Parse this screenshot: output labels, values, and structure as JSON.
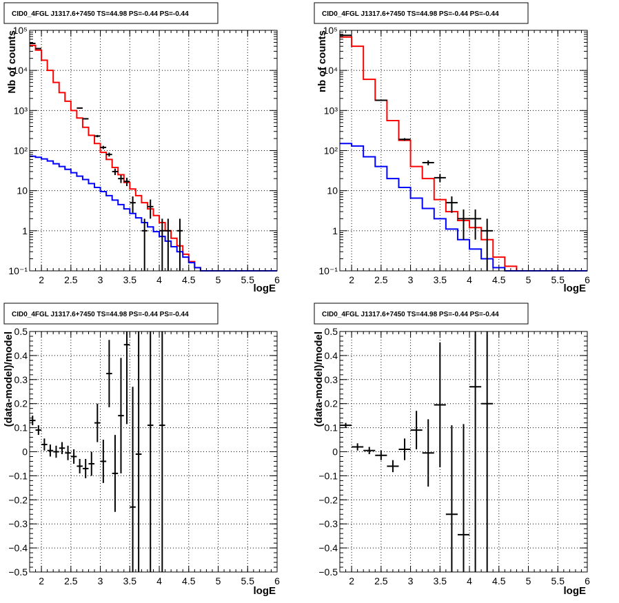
{
  "chart_data": [
    {
      "id": "p1",
      "type": "line",
      "title": "CID0_4FGL J1317.6+7450 TS=44.98 PS=-0.44 PS=-0.44",
      "xlabel": "logE",
      "ylabel": "Nb of counts",
      "xlim": [
        1.8,
        6.0
      ],
      "ylim": [
        0.1,
        100000
      ],
      "yscale": "log",
      "grid": true,
      "xticks": [
        2,
        2.5,
        3,
        3.5,
        4,
        4.5,
        5,
        5.5,
        6
      ],
      "xtick_labels": [
        "2",
        "2.5",
        "3",
        "3.5",
        "4",
        "4.5",
        "5",
        "5.5",
        "6"
      ],
      "yticks": [
        0.1,
        1,
        10,
        100,
        1000,
        10000,
        100000
      ],
      "ytick_labels": [
        "10⁻¹",
        "1",
        "10",
        "10²",
        "10³",
        "10⁴",
        "10⁵"
      ],
      "hist_edges": [
        1.8,
        1.9,
        2.0,
        2.1,
        2.2,
        2.3,
        2.4,
        2.5,
        2.6,
        2.7,
        2.8,
        2.9,
        3.0,
        3.1,
        3.2,
        3.3,
        3.4,
        3.5,
        3.6,
        3.7,
        3.8,
        3.9,
        4.0,
        4.1,
        4.2,
        4.3,
        4.4,
        4.5,
        4.6,
        4.7,
        4.8,
        4.9,
        5.0,
        5.1,
        5.2,
        5.3,
        5.4,
        5.5,
        5.6,
        5.7,
        5.8,
        5.9,
        6.0
      ],
      "series": [
        {
          "color": "#ff0000",
          "values": [
            42000,
            32000,
            18000,
            10000,
            5000,
            2800,
            1700,
            1000,
            650,
            380,
            240,
            150,
            90,
            60,
            38,
            25,
            16,
            11,
            7.5,
            5,
            3.5,
            2.4,
            1.6,
            1.0,
            0.65,
            0.42,
            0.26,
            0.17,
            0.12,
            0.1,
            0.1,
            0.1,
            0.1,
            0.1,
            0.1,
            0.1,
            0.1,
            0.1,
            0.1,
            0.1,
            0.1,
            0.1
          ]
        },
        {
          "color": "#0000ff",
          "values": [
            72,
            68,
            62,
            55,
            47,
            40,
            34,
            28,
            23,
            19,
            15,
            12,
            9.5,
            7.5,
            5.8,
            4.5,
            3.5,
            2.7,
            2.1,
            1.6,
            1.25,
            0.95,
            0.72,
            0.55,
            0.4,
            0.3,
            0.22,
            0.16,
            0.12,
            0.1,
            0.1,
            0.1,
            0.1,
            0.1,
            0.1,
            0.1,
            0.1,
            0.1,
            0.1,
            0.1,
            0.1,
            0.1
          ]
        }
      ],
      "points": [
        {
          "x": 1.85,
          "y": 47000,
          "ey": 220
        },
        {
          "x": 1.95,
          "y": 35000,
          "ey": 190
        },
        {
          "x": 2.65,
          "y": 1150,
          "ey": 34
        },
        {
          "x": 2.75,
          "y": 620,
          "ey": 25
        },
        {
          "x": 2.95,
          "y": 230,
          "ey": 15
        },
        {
          "x": 3.05,
          "y": 120,
          "ey": 11
        },
        {
          "x": 3.15,
          "y": 80,
          "ey": 9
        },
        {
          "x": 3.25,
          "y": 30,
          "ey": 5.5
        },
        {
          "x": 3.35,
          "y": 20,
          "ey": 4.5
        },
        {
          "x": 3.45,
          "y": 17,
          "ey": 4
        },
        {
          "x": 3.55,
          "y": 5,
          "ey": 2.2
        },
        {
          "x": 3.75,
          "y": 1,
          "ey": 1
        },
        {
          "x": 3.85,
          "y": 4,
          "ey": 2
        },
        {
          "x": 4.05,
          "y": 1,
          "ey": 1
        },
        {
          "x": 4.15,
          "y": 1,
          "ey": 1
        },
        {
          "x": 4.35,
          "y": 1,
          "ey": 1
        }
      ],
      "point_halfwidth": 0.05
    },
    {
      "id": "p2",
      "type": "line",
      "title": "CID0_4FGL J1317.6+7450 TS=44.98 PS=-0.44 PS=-0.44",
      "xlabel": "logE",
      "ylabel": "nb of counts",
      "xlim": [
        1.8,
        6.0
      ],
      "ylim": [
        0.1,
        100000
      ],
      "yscale": "log",
      "grid": true,
      "xticks": [
        2,
        2.5,
        3,
        3.5,
        4,
        4.5,
        5,
        5.5,
        6
      ],
      "xtick_labels": [
        "2",
        "2.5",
        "3",
        "3.5",
        "4",
        "4.5",
        "5",
        "5.5",
        "6"
      ],
      "yticks": [
        0.1,
        1,
        10,
        100,
        1000,
        10000,
        100000
      ],
      "ytick_labels": [
        "10⁻¹",
        "1",
        "10",
        "10²",
        "10³",
        "10⁴",
        "10⁵"
      ],
      "hist_edges": [
        1.8,
        2.0,
        2.2,
        2.4,
        2.6,
        2.8,
        3.0,
        3.2,
        3.4,
        3.6,
        3.8,
        4.0,
        4.2,
        4.4,
        4.6,
        4.8,
        5.0,
        5.2,
        5.4,
        5.6,
        5.8,
        6.0
      ],
      "series": [
        {
          "color": "#ff0000",
          "values": [
            68000,
            40000,
            6000,
            1800,
            560,
            180,
            40,
            20,
            6,
            3,
            1.8,
            1.2,
            0.6,
            0.22,
            0.13,
            0.1,
            0.1,
            0.1,
            0.1,
            0.1,
            0.1
          ]
        },
        {
          "color": "#0000ff",
          "values": [
            150,
            130,
            70,
            40,
            20,
            12,
            6.5,
            3.6,
            2,
            1.1,
            0.6,
            0.35,
            0.2,
            0.12,
            0.1,
            0.1,
            0.1,
            0.1,
            0.1,
            0.1,
            0.1
          ]
        }
      ],
      "points": [
        {
          "x": 1.9,
          "y": 75000,
          "ey": 275
        },
        {
          "x": 2.5,
          "y": 1800,
          "ey": 42
        },
        {
          "x": 2.9,
          "y": 190,
          "ey": 14
        },
        {
          "x": 3.3,
          "y": 50,
          "ey": 7
        },
        {
          "x": 3.5,
          "y": 21,
          "ey": 4.6
        },
        {
          "x": 3.7,
          "y": 5,
          "ey": 2.2
        },
        {
          "x": 3.9,
          "y": 2,
          "ey": 1.4
        },
        {
          "x": 4.1,
          "y": 2,
          "ey": 1.4
        },
        {
          "x": 4.3,
          "y": 1,
          "ey": 1
        }
      ],
      "point_halfwidth": 0.1
    },
    {
      "id": "p3",
      "type": "scatter",
      "title": "CID0_4FGL J1317.6+7450 TS=44.98 PS=-0.44 PS=-0.44",
      "xlabel": "logE",
      "ylabel": "(data-model)/model",
      "xlim": [
        1.8,
        6.0
      ],
      "ylim": [
        -0.5,
        0.5
      ],
      "yscale": "linear",
      "grid": true,
      "xticks": [
        2,
        2.5,
        3,
        3.5,
        4,
        4.5,
        5,
        5.5,
        6
      ],
      "xtick_labels": [
        "2",
        "2.5",
        "3",
        "3.5",
        "4",
        "4.5",
        "5",
        "5.5",
        "6"
      ],
      "yticks": [
        -0.5,
        -0.4,
        -0.3,
        -0.2,
        -0.1,
        0,
        0.1,
        0.2,
        0.3,
        0.4,
        0.5
      ],
      "ytick_labels": [
        "−0.5",
        "−0.4",
        "−0.3",
        "−0.2",
        "−0.1",
        "0",
        "0.1",
        "0.2",
        "0.3",
        "0.4",
        "0.5"
      ],
      "points": [
        {
          "x": 1.85,
          "y": 0.13,
          "ey": 0.02
        },
        {
          "x": 1.95,
          "y": 0.09,
          "ey": 0.02
        },
        {
          "x": 2.05,
          "y": 0.03,
          "ey": 0.025
        },
        {
          "x": 2.15,
          "y": 0.005,
          "ey": 0.025
        },
        {
          "x": 2.25,
          "y": 0.0,
          "ey": 0.025
        },
        {
          "x": 2.35,
          "y": 0.015,
          "ey": 0.025
        },
        {
          "x": 2.45,
          "y": -0.005,
          "ey": 0.03
        },
        {
          "x": 2.55,
          "y": -0.02,
          "ey": 0.03
        },
        {
          "x": 2.65,
          "y": -0.06,
          "ey": 0.03
        },
        {
          "x": 2.75,
          "y": -0.07,
          "ey": 0.04
        },
        {
          "x": 2.85,
          "y": -0.05,
          "ey": 0.05
        },
        {
          "x": 2.95,
          "y": 0.12,
          "ey": 0.08
        },
        {
          "x": 3.05,
          "y": -0.04,
          "ey": 0.09
        },
        {
          "x": 3.15,
          "y": 0.325,
          "ey": 0.14
        },
        {
          "x": 3.25,
          "y": -0.09,
          "ey": 0.16
        },
        {
          "x": 3.35,
          "y": 0.15,
          "ey": 0.24
        },
        {
          "x": 3.45,
          "y": 0.445,
          "ey": 0.33
        },
        {
          "x": 3.55,
          "y": -0.23,
          "ey": 0.5
        },
        {
          "x": 3.65,
          "y": -0.01,
          "ey": 0.55
        },
        {
          "x": 3.85,
          "y": 0.11,
          "ey": 1.0
        },
        {
          "x": 4.05,
          "y": 0.11,
          "ey": 1.0
        }
      ],
      "point_halfwidth": 0.05
    },
    {
      "id": "p4",
      "type": "scatter",
      "title": "CID0_4FGL J1317.6+7450 TS=44.98 PS=-0.44 PS=-0.44",
      "xlabel": "logE",
      "ylabel": "(data-model)/model",
      "xlim": [
        1.8,
        6.0
      ],
      "ylim": [
        -0.5,
        0.5
      ],
      "yscale": "linear",
      "grid": true,
      "xticks": [
        2,
        2.5,
        3,
        3.5,
        4,
        4.5,
        5,
        5.5,
        6
      ],
      "xtick_labels": [
        "2",
        "2.5",
        "3",
        "3.5",
        "4",
        "4.5",
        "5",
        "5.5",
        "6"
      ],
      "yticks": [
        -0.5,
        -0.4,
        -0.3,
        -0.2,
        -0.1,
        0,
        0.1,
        0.2,
        0.3,
        0.4,
        0.5
      ],
      "ytick_labels": [
        "−0.5",
        "−0.4",
        "−0.3",
        "−0.2",
        "−0.1",
        "0",
        "0.1",
        "0.2",
        "0.3",
        "0.4",
        "0.5"
      ],
      "points": [
        {
          "x": 1.9,
          "y": 0.11,
          "ey": 0.01
        },
        {
          "x": 2.1,
          "y": 0.02,
          "ey": 0.015
        },
        {
          "x": 2.3,
          "y": 0.005,
          "ey": 0.015
        },
        {
          "x": 2.5,
          "y": -0.015,
          "ey": 0.02
        },
        {
          "x": 2.7,
          "y": -0.06,
          "ey": 0.025
        },
        {
          "x": 2.9,
          "y": 0.01,
          "ey": 0.045
        },
        {
          "x": 3.1,
          "y": 0.09,
          "ey": 0.08
        },
        {
          "x": 3.3,
          "y": -0.005,
          "ey": 0.14
        },
        {
          "x": 3.5,
          "y": 0.195,
          "ey": 0.26
        },
        {
          "x": 3.7,
          "y": -0.26,
          "ey": 0.37
        },
        {
          "x": 3.9,
          "y": -0.345,
          "ey": 0.46
        },
        {
          "x": 4.1,
          "y": 0.27,
          "ey": 1.0
        },
        {
          "x": 4.3,
          "y": 0.2,
          "ey": 1.0
        }
      ],
      "point_halfwidth": 0.1
    }
  ]
}
